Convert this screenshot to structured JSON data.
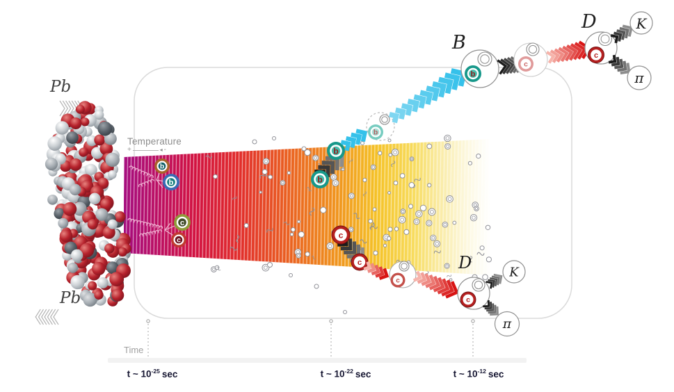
{
  "labels": {
    "pb_top": "Pb",
    "pb_bottom": "Pb",
    "temperature": "Temperature",
    "temp_plus": "+",
    "temp_arrow": "◂",
    "temp_minus": "-",
    "time": "Time",
    "b_meson": "B",
    "d_meson_top": "D",
    "d_meson_bottom": "D",
    "kaon_top": "K",
    "pion_top": "π",
    "kaon_bottom": "K",
    "pion_bottom": "π"
  },
  "quarks": {
    "b": "b",
    "c": "c"
  },
  "timeline_ticks": [
    {
      "base": "t ~ 10",
      "exp": "-25",
      "unit": "sec"
    },
    {
      "base": "t ~ 10",
      "exp": "-22",
      "unit": "sec"
    },
    {
      "base": "t ~ 10",
      "exp": "-12",
      "unit": "sec"
    }
  ],
  "colors": {
    "plasma_stops": [
      [
        0,
        "#a50c7e",
        1
      ],
      [
        0.09,
        "#bb0e63",
        1
      ],
      [
        0.19,
        "#d11141",
        1
      ],
      [
        0.31,
        "#e12b2b",
        1
      ],
      [
        0.45,
        "#ea6120",
        1
      ],
      [
        0.58,
        "#f0941d",
        1
      ],
      [
        0.69,
        "#f5c227",
        1
      ],
      [
        0.79,
        "#f7da55",
        0.95
      ],
      [
        0.88,
        "#f9eaa0",
        0.78
      ],
      [
        1,
        "#fbf3c9",
        0
      ]
    ],
    "hatch": "#ffffff",
    "border": "#dadada",
    "coil": "#f4bcd9",
    "particle_stroke": "#8f9097",
    "cyan_from": "#7fd6f1",
    "cyan_to": "#35c1ea",
    "red_from": "#f6b4ab",
    "red_to": "#d81414",
    "dark_from": "#1c1c1c",
    "dark_to": "#8d8d8d",
    "teal_ring": "#17988a",
    "teal_inner": "#46bcab",
    "b_letter": "#8f1d1d",
    "teal_ring_faded": "#77ccc0",
    "teal_inner_faded": "#aadfd7",
    "b_letter_faded": "#b06060",
    "red_ring": "#b51f1f",
    "c_letter": "#b51f1f",
    "red_ring_dark_edge": "#6e0f0f",
    "red_ring_faded": "#e09a9a",
    "c_letter_faded": "#cc6a6a",
    "red_ring_mid": "#c4504a",
    "vx_b1_ring": "#a8622a",
    "vx_b1_inner": "#0f5f66",
    "vx_b2_ring": "#3a6cb4",
    "vx_b2_inner": "#177f7f",
    "vx_c1_ring": "#8f9a3a",
    "vx_c1_inner": "#3d4a27",
    "vx_c2_ring": "#c03a30",
    "vx_c2_inner": "#6b1420",
    "meson_stroke": "#8f8f8f",
    "meson_stroke_faint": "#c9c9c9",
    "dotted": "#b8b8b8",
    "nucleus_red_hi": "#e8837f",
    "nucleus_red": "#b6222c",
    "nucleus_red_dk": "#77121c",
    "nucleus_lt_hi": "#ffffff",
    "nucleus_lt": "#c9ced2",
    "nucleus_lt_dk": "#8d959c",
    "nucleus_md_hi": "#dfe1e3",
    "nucleus_md": "#a6adb3",
    "nucleus_md_dk": "#70787f",
    "nucleus_dk_hi": "#9aa1a7",
    "nucleus_dk": "#5a626a",
    "nucleus_dk_dk": "#343b42",
    "pb_chevron": "#b4b4b4",
    "label_gray": "#8c8c8c",
    "bar": "#f2f2f2"
  }
}
